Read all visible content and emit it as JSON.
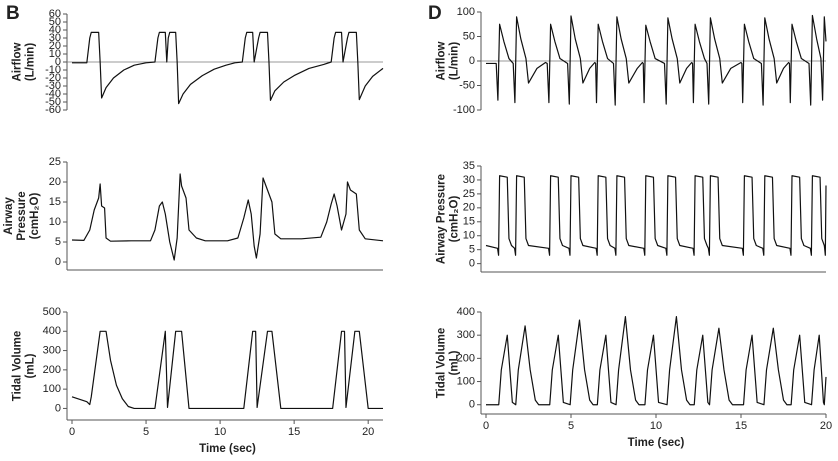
{
  "chart_data": [
    {
      "type": "line",
      "panel": "B",
      "ylabel": [
        "Airflow",
        "(L/min)"
      ],
      "xlim": [
        0,
        21
      ],
      "ylim": [
        -60,
        60
      ],
      "yticks": [
        60,
        50,
        40,
        30,
        20,
        10,
        0,
        -10,
        -20,
        -30,
        -40,
        -50,
        -60
      ],
      "zero_line": true,
      "color": "#111",
      "x": [
        0,
        1.0,
        1.2,
        1.3,
        1.8,
        1.9,
        2.0,
        2.3,
        2.8,
        3.5,
        4.2,
        5.0,
        5.6,
        5.8,
        5.9,
        6.3,
        6.4,
        6.5,
        6.6,
        7.0,
        7.1,
        7.2,
        7.5,
        8.0,
        8.8,
        9.6,
        10.4,
        11.0,
        11.5,
        11.7,
        11.8,
        12.2,
        12.3,
        12.6,
        12.7,
        13.2,
        13.3,
        13.4,
        13.7,
        14.3,
        15.0,
        16.0,
        17.0,
        17.5,
        17.7,
        17.8,
        18.2,
        18.3,
        18.6,
        18.7,
        19.2,
        19.3,
        19.4,
        19.8,
        20.3,
        21
      ],
      "values": [
        -1,
        -1,
        30,
        37,
        37,
        0,
        -45,
        -32,
        -20,
        -10,
        -4,
        -1,
        0,
        30,
        37,
        37,
        0,
        30,
        37,
        37,
        0,
        -52,
        -40,
        -28,
        -17,
        -9,
        -4,
        -1,
        0,
        30,
        37,
        37,
        0,
        30,
        37,
        37,
        0,
        -48,
        -36,
        -25,
        -17,
        -8,
        -3,
        0,
        30,
        37,
        37,
        0,
        30,
        37,
        37,
        0,
        -47,
        -30,
        -18,
        -8
      ]
    },
    {
      "type": "line",
      "ylabel": [
        "Airway",
        "Pressure",
        "(cmH₂O)"
      ],
      "xlim": [
        0,
        21
      ],
      "ylim": [
        -2,
        25
      ],
      "yticks": [
        0,
        5,
        10,
        15,
        20,
        25
      ],
      "color": "#111",
      "x": [
        0,
        0.8,
        1.2,
        1.5,
        1.8,
        1.9,
        2.0,
        2.2,
        2.3,
        2.6,
        4,
        5.3,
        5.6,
        5.9,
        6.1,
        6.3,
        6.6,
        6.9,
        7.1,
        7.3,
        7.4,
        7.7,
        7.9,
        8.4,
        9,
        10.5,
        11.2,
        11.6,
        11.9,
        12.1,
        12.3,
        12.45,
        12.7,
        12.9,
        13.1,
        13.5,
        13.7,
        14.1,
        15.5,
        16.8,
        17.2,
        17.5,
        17.7,
        17.9,
        18.2,
        18.5,
        18.6,
        18.8,
        19.2,
        19.4,
        19.8,
        21
      ],
      "values": [
        5.5,
        5.4,
        8,
        13,
        16,
        19.5,
        14,
        13.5,
        6,
        5.2,
        5.3,
        5.3,
        8,
        14,
        15,
        12,
        5,
        0.5,
        6,
        22,
        19,
        16,
        8,
        6,
        5.3,
        5.3,
        6,
        11,
        15.5,
        12,
        4,
        1,
        7,
        21,
        19,
        15,
        7,
        5.8,
        5.8,
        6.2,
        10,
        14.5,
        17,
        14,
        8,
        12,
        20,
        18,
        17,
        8,
        5.8,
        5.3
      ]
    },
    {
      "type": "line",
      "ylabel": [
        "Tidal Volume",
        "(mL)"
      ],
      "xlabel": "Time (sec)",
      "xlim": [
        0,
        21
      ],
      "ylim": [
        -60,
        500
      ],
      "xticks": [
        0,
        5,
        10,
        15,
        20
      ],
      "yticks": [
        0,
        100,
        200,
        300,
        400,
        500
      ],
      "color": "#111",
      "x": [
        0,
        1.0,
        1.2,
        1.3,
        1.9,
        2.3,
        2.6,
        3.0,
        3.4,
        3.8,
        4.2,
        5.6,
        6.3,
        6.45,
        7.0,
        7.4,
        7.9,
        11.6,
        12.2,
        12.4,
        12.5,
        13.2,
        13.5,
        14.1,
        17.6,
        18.2,
        18.4,
        18.5,
        19.1,
        19.4,
        20.0,
        21
      ],
      "values": [
        60,
        35,
        20,
        60,
        400,
        400,
        250,
        120,
        50,
        10,
        0,
        0,
        400,
        5,
        400,
        400,
        0,
        0,
        400,
        400,
        5,
        400,
        400,
        0,
        0,
        400,
        400,
        5,
        400,
        400,
        0,
        0
      ]
    },
    {
      "type": "line",
      "panel": "D",
      "ylabel": [
        "Airflow",
        "(L/min)"
      ],
      "xlim": [
        0,
        20
      ],
      "ylim": [
        -100,
        100
      ],
      "yticks": [
        100,
        50,
        0,
        -50,
        -100
      ],
      "zero_line": true,
      "color": "#111",
      "x": [
        0,
        0.6,
        0.7,
        0.8,
        1.05,
        1.35,
        1.6,
        1.7,
        1.8,
        2.05,
        2.35,
        2.5,
        3.0,
        3.5,
        3.6,
        3.7,
        3.8,
        4.05,
        4.35,
        4.8,
        4.9,
        5.0,
        5.25,
        5.55,
        5.7,
        6.1,
        6.4,
        6.45,
        6.5,
        6.6,
        6.85,
        7.15,
        7.5,
        7.6,
        7.7,
        7.95,
        8.25,
        8.4,
        8.9,
        9.2,
        9.25,
        9.3,
        9.4,
        9.65,
        9.95,
        10.5,
        10.6,
        10.7,
        10.95,
        11.25,
        11.4,
        11.8,
        12.1,
        12.15,
        12.2,
        12.3,
        12.55,
        12.85,
        13.0,
        13.1,
        13.2,
        13.45,
        13.75,
        13.9,
        14.4,
        15.0,
        15.05,
        15.1,
        15.2,
        15.45,
        15.75,
        16.2,
        16.3,
        16.4,
        16.65,
        16.95,
        17.1,
        17.5,
        17.8,
        17.85,
        17.9,
        18.0,
        18.25,
        18.55,
        19.0,
        19.1,
        19.2,
        19.45,
        19.7,
        19.8,
        19.9,
        20.0
      ],
      "values": [
        -5,
        -5,
        -80,
        75,
        40,
        5,
        -5,
        -85,
        90,
        45,
        5,
        -45,
        -15,
        -3,
        -5,
        -85,
        75,
        40,
        5,
        -5,
        -88,
        92,
        45,
        5,
        -45,
        -15,
        -3,
        -5,
        -85,
        75,
        40,
        5,
        -5,
        -90,
        90,
        45,
        5,
        -45,
        -15,
        -3,
        -5,
        -85,
        73,
        40,
        5,
        -5,
        -88,
        88,
        45,
        5,
        -45,
        -15,
        -3,
        -5,
        -85,
        75,
        40,
        5,
        -5,
        -88,
        88,
        45,
        5,
        -45,
        -15,
        -3,
        -5,
        -85,
        75,
        40,
        5,
        -5,
        -90,
        88,
        45,
        5,
        -45,
        -15,
        -3,
        -5,
        -85,
        75,
        40,
        5,
        -5,
        -90,
        93,
        45,
        5,
        -80,
        90,
        40
      ]
    },
    {
      "type": "line",
      "ylabel": [
        "Airway Pressure",
        "(cmH₂O)"
      ],
      "xlim": [
        0,
        20
      ],
      "ylim": [
        -3,
        35
      ],
      "yticks": [
        0,
        5,
        10,
        15,
        20,
        25,
        30,
        35
      ],
      "color": "#111",
      "x": [
        0,
        0.68,
        0.74,
        0.8,
        1.25,
        1.35,
        1.5,
        1.68,
        1.74,
        1.8,
        2.25,
        2.35,
        2.5,
        3.68,
        3.74,
        3.8,
        4.25,
        4.35,
        4.5,
        4.88,
        4.94,
        5.0,
        5.45,
        5.55,
        5.7,
        6.48,
        6.54,
        6.6,
        7.05,
        7.15,
        7.3,
        7.58,
        7.64,
        7.7,
        8.15,
        8.25,
        8.4,
        9.28,
        9.34,
        9.4,
        9.85,
        9.95,
        10.1,
        10.58,
        10.64,
        10.7,
        11.15,
        11.25,
        11.4,
        12.18,
        12.24,
        12.3,
        12.75,
        12.85,
        13.0,
        13.08,
        13.14,
        13.2,
        13.65,
        13.75,
        13.9,
        15.08,
        15.14,
        15.2,
        15.65,
        15.75,
        15.9,
        16.28,
        16.34,
        16.4,
        16.85,
        16.95,
        17.1,
        17.88,
        17.94,
        18.0,
        18.45,
        18.55,
        18.7,
        19.08,
        19.14,
        19.2,
        19.65,
        19.75,
        19.9,
        19.92,
        19.96,
        20.0
      ],
      "values": [
        6.5,
        5.5,
        3,
        31.5,
        31,
        9,
        6.5,
        5.5,
        3,
        31.5,
        31,
        9,
        6.5,
        5.5,
        3,
        31.5,
        31,
        9,
        6.5,
        5.5,
        3,
        31.5,
        31,
        9,
        6.5,
        5.5,
        3,
        31.5,
        31,
        9,
        6.5,
        5.5,
        3,
        31.5,
        31,
        9,
        6.5,
        5.5,
        3,
        31.5,
        31,
        9,
        6.5,
        5.5,
        3,
        31.5,
        31,
        9,
        6.5,
        5.5,
        3,
        31.5,
        31,
        9,
        6.5,
        5.5,
        3,
        31.5,
        31,
        9,
        6.5,
        5.5,
        3,
        31.5,
        31,
        9,
        6.5,
        5.5,
        3,
        31.5,
        31,
        9,
        6.5,
        5.5,
        3,
        31.5,
        31,
        9,
        6.5,
        5.5,
        3,
        31.5,
        31,
        9,
        6.5,
        5.5,
        3,
        28
      ]
    },
    {
      "type": "line",
      "ylabel": [
        "Tidal Volume",
        "(mL)"
      ],
      "xlabel": "Time (sec)",
      "xlim": [
        0,
        20
      ],
      "ylim": [
        -40,
        400
      ],
      "xticks": [
        0,
        5,
        10,
        15,
        20
      ],
      "yticks": [
        0,
        100,
        200,
        300,
        400
      ],
      "color": "#111",
      "x": [
        0,
        0.75,
        0.9,
        1.25,
        1.55,
        1.75,
        1.9,
        2.3,
        2.6,
        2.9,
        3.1,
        3.75,
        3.9,
        4.25,
        4.55,
        4.95,
        5.1,
        5.5,
        5.8,
        6.1,
        6.3,
        6.55,
        6.7,
        7.05,
        7.35,
        7.65,
        7.8,
        8.2,
        8.5,
        8.8,
        9.0,
        9.35,
        9.5,
        9.85,
        10.15,
        10.65,
        10.8,
        11.2,
        11.5,
        11.8,
        12.0,
        12.25,
        12.4,
        12.75,
        13.05,
        13.15,
        13.3,
        13.7,
        14.0,
        14.3,
        14.5,
        15.15,
        15.3,
        15.65,
        15.95,
        16.35,
        16.5,
        16.9,
        17.2,
        17.5,
        17.7,
        17.95,
        18.1,
        18.45,
        18.75,
        19.15,
        19.3,
        19.6,
        19.85,
        19.9,
        20.0
      ],
      "values": [
        0,
        0,
        150,
        300,
        10,
        0,
        150,
        340,
        150,
        20,
        0,
        0,
        150,
        300,
        10,
        0,
        150,
        365,
        150,
        20,
        0,
        0,
        150,
        300,
        10,
        0,
        150,
        380,
        150,
        20,
        0,
        0,
        150,
        300,
        10,
        0,
        150,
        380,
        150,
        20,
        0,
        0,
        150,
        300,
        10,
        0,
        150,
        330,
        150,
        20,
        0,
        0,
        150,
        300,
        10,
        0,
        150,
        330,
        150,
        20,
        0,
        0,
        150,
        300,
        10,
        0,
        150,
        300,
        10,
        0,
        120
      ]
    }
  ]
}
